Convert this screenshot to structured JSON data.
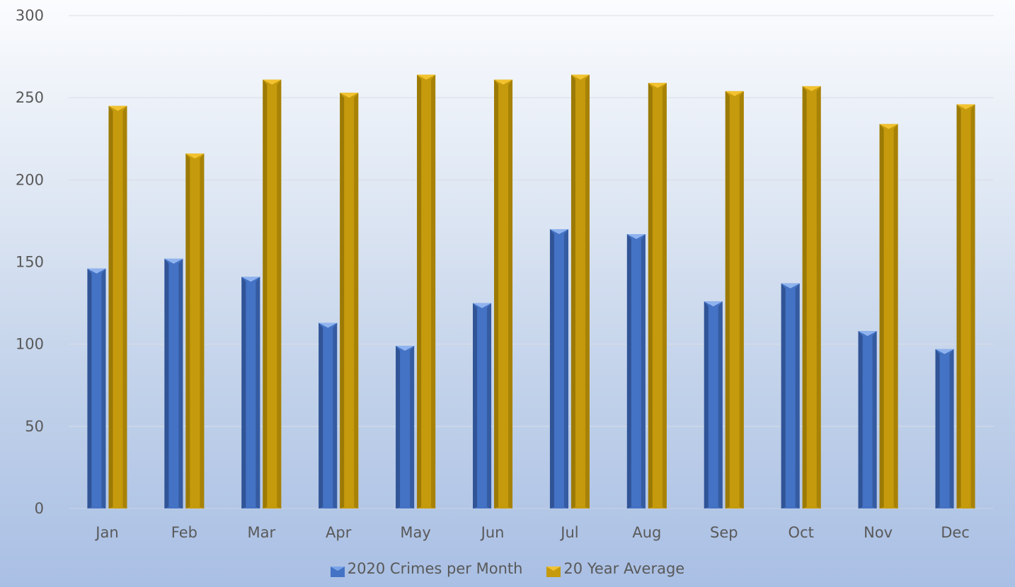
{
  "chart_data": {
    "type": "bar",
    "title": "",
    "xlabel": "",
    "ylabel": "",
    "ylim": [
      0,
      300
    ],
    "yticks": [
      0,
      50,
      100,
      150,
      200,
      250,
      300
    ],
    "grid": true,
    "legend_position": "bottom",
    "categories": [
      "Jan",
      "Feb",
      "Mar",
      "Apr",
      "May",
      "Jun",
      "Jul",
      "Aug",
      "Sep",
      "Oct",
      "Nov",
      "Dec"
    ],
    "series": [
      {
        "name": "2020 Crimes per Month",
        "color": "#4472c4",
        "values": [
          146,
          152,
          141,
          113,
          99,
          125,
          170,
          167,
          126,
          137,
          108,
          97
        ]
      },
      {
        "name": "20 Year Average",
        "color": "#c59a0c",
        "values": [
          245,
          216,
          261,
          253,
          264,
          261,
          264,
          259,
          254,
          257,
          234,
          246
        ]
      }
    ]
  }
}
